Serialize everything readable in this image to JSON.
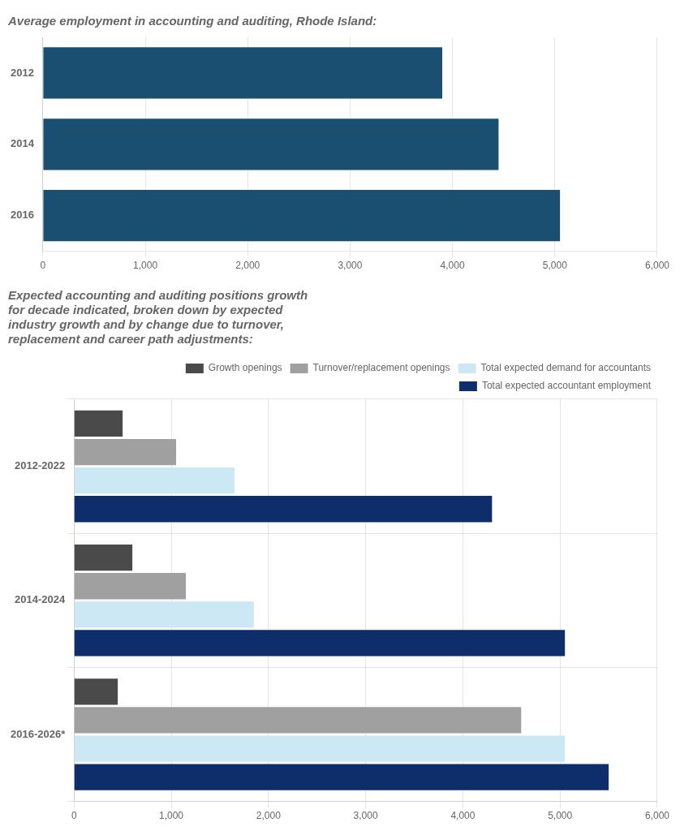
{
  "chart_data": [
    {
      "type": "bar",
      "orientation": "horizontal",
      "title": "Average employment in accounting and auditing, Rhode Island:",
      "categories": [
        "2016",
        "2014",
        "2012"
      ],
      "values": [
        5050,
        4450,
        3900
      ],
      "color": "#1b4f72",
      "xlim": [
        0,
        6000
      ],
      "xticks": [
        0,
        {
          "value": 1000,
          "label": "1,000"
        },
        {
          "value": 2000,
          "label": "2,000"
        },
        {
          "value": 3000,
          "label": "3,000"
        },
        {
          "value": 4000,
          "label": "4,000"
        },
        {
          "value": 5000,
          "label": "5,000"
        },
        {
          "value": 6000,
          "label": "6,000"
        }
      ],
      "grid": true
    },
    {
      "type": "bar",
      "orientation": "horizontal",
      "title": "Expected accounting and auditing positions growth\nfor decade indicated, broken down by expected\nindustry growth and by change due to turnover,\nreplacement and career path adjustments:",
      "categories": [
        "2016-2026*",
        "2014-2024",
        "2012-2022"
      ],
      "series": [
        {
          "name": "Growth openings",
          "color": "#4a4a4a",
          "values": [
            450,
            600,
            500
          ]
        },
        {
          "name": "Turnover/replacement openings",
          "color": "#a0a0a0",
          "values": [
            4600,
            1150,
            1050
          ]
        },
        {
          "name": "Total expected demand for accountants",
          "color": "#cce8f4",
          "values": [
            5050,
            1850,
            1650
          ]
        },
        {
          "name": "Total expected accountant employment",
          "color": "#0d2d6b",
          "values": [
            5500,
            5050,
            4300
          ]
        }
      ],
      "xlim": [
        0,
        6000
      ],
      "xticks": [
        0,
        {
          "value": 1000,
          "label": "1,000"
        },
        {
          "value": 2000,
          "label": "2,000"
        },
        {
          "value": 3000,
          "label": "3,000"
        },
        {
          "value": 4000,
          "label": "4,000"
        },
        {
          "value": 5000,
          "label": "5,000"
        },
        {
          "value": 6000,
          "label": "6,000"
        }
      ],
      "grid": true,
      "legend": "upper right"
    }
  ]
}
